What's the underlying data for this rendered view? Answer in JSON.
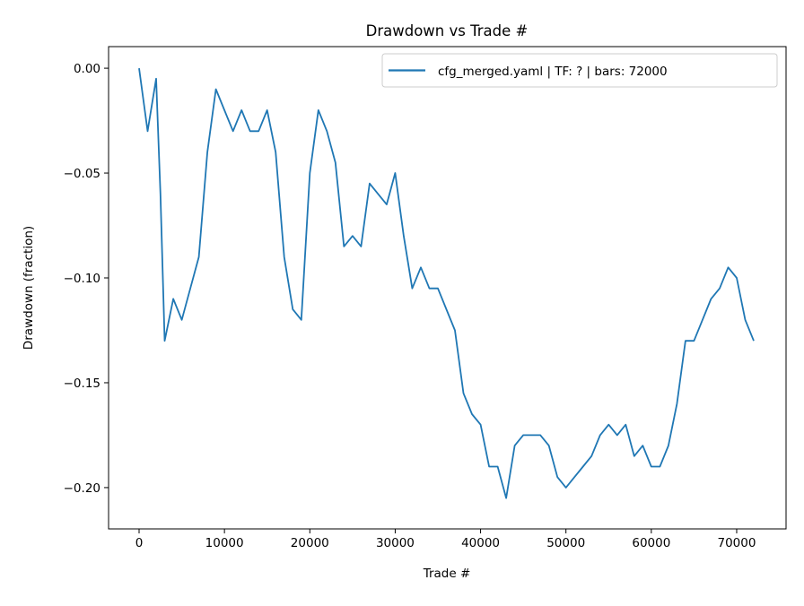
{
  "chart_data": {
    "type": "line",
    "title": "Drawdown vs Trade #",
    "xlabel": "Trade #",
    "ylabel": "Drawdown (fraction)",
    "xlim": [
      -3574,
      75783
    ],
    "ylim": [
      -0.2197,
      0.0103
    ],
    "xticks": [
      0,
      10000,
      20000,
      30000,
      40000,
      50000,
      60000,
      70000
    ],
    "xtick_labels": [
      "0",
      "10000",
      "20000",
      "30000",
      "40000",
      "50000",
      "60000",
      "70000"
    ],
    "yticks": [
      0,
      -0.05,
      -0.1,
      -0.15,
      -0.2
    ],
    "ytick_labels": [
      "0.00",
      "−0.05",
      "−0.10",
      "−0.15",
      "−0.20"
    ],
    "grid": false,
    "legend_position": "top-right",
    "series": [
      {
        "name": "cfg_merged.yaml | TF: ? | bars: 72000",
        "color": "#1f77b4",
        "x": [
          0,
          1000,
          2000,
          2500,
          3000,
          4000,
          5000,
          6000,
          7000,
          8000,
          9000,
          10000,
          11000,
          12000,
          13000,
          14000,
          15000,
          16000,
          17000,
          18000,
          19000,
          20000,
          21000,
          22000,
          23000,
          24000,
          25000,
          26000,
          27000,
          28000,
          29000,
          30000,
          31000,
          32000,
          33000,
          34000,
          35000,
          36000,
          37000,
          38000,
          39000,
          40000,
          41000,
          42000,
          43000,
          44000,
          45000,
          46000,
          47000,
          48000,
          49000,
          50000,
          51000,
          52000,
          53000,
          54000,
          55000,
          56000,
          57000,
          58000,
          59000,
          60000,
          61000,
          62000,
          63000,
          64000,
          65000,
          66000,
          67000,
          68000,
          69000,
          70000,
          71000,
          72000
        ],
        "y": [
          0,
          -0.03,
          -0.005,
          -0.06,
          -0.13,
          -0.11,
          -0.12,
          -0.105,
          -0.09,
          -0.04,
          -0.01,
          -0.02,
          -0.03,
          -0.02,
          -0.03,
          -0.03,
          -0.02,
          -0.04,
          -0.09,
          -0.115,
          -0.12,
          -0.05,
          -0.02,
          -0.03,
          -0.045,
          -0.085,
          -0.08,
          -0.085,
          -0.055,
          -0.06,
          -0.065,
          -0.05,
          -0.08,
          -0.105,
          -0.095,
          -0.105,
          -0.105,
          -0.115,
          -0.125,
          -0.155,
          -0.165,
          -0.17,
          -0.19,
          -0.19,
          -0.205,
          -0.18,
          -0.175,
          -0.175,
          -0.175,
          -0.18,
          -0.195,
          -0.2,
          -0.195,
          -0.19,
          -0.185,
          -0.175,
          -0.17,
          -0.175,
          -0.17,
          -0.185,
          -0.18,
          -0.19,
          -0.19,
          -0.18,
          -0.16,
          -0.13,
          -0.13,
          -0.12,
          -0.11,
          -0.105,
          -0.095,
          -0.1,
          -0.12,
          -0.13
        ]
      }
    ]
  }
}
